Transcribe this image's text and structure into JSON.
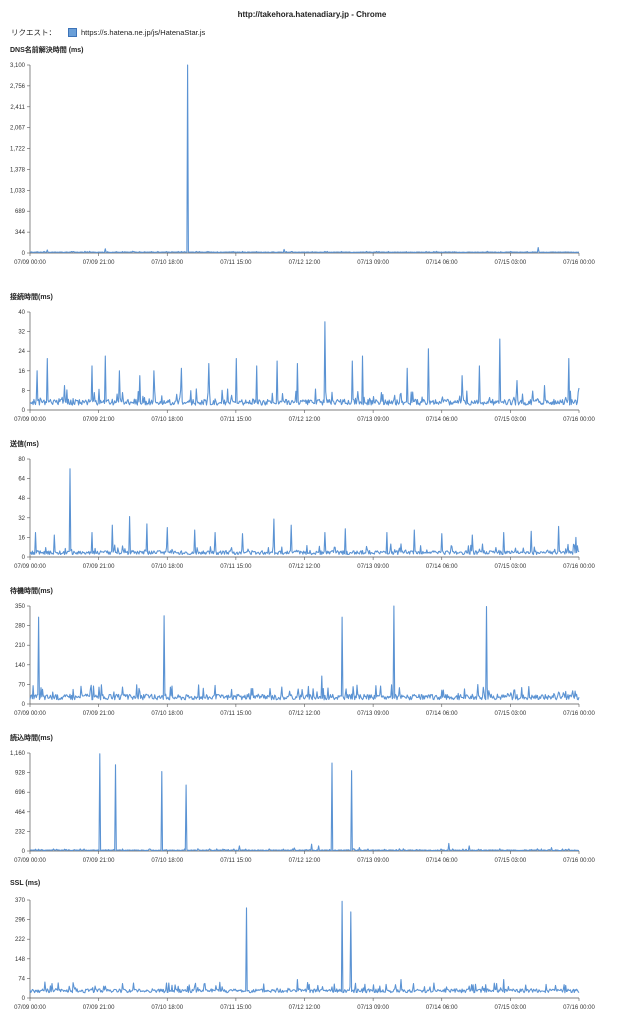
{
  "header": {
    "title": "http://takehora.hatenadiary.jp - Chrome",
    "request_label": "リクエスト：",
    "legend_label": "https://s.hatena.ne.jp/js/HatenaStar.js"
  },
  "colors": {
    "series": "#5b93d3",
    "axis": "#555555",
    "swatch": "#6a9fd8"
  },
  "chart_data": [
    {
      "type": "line",
      "title": "DNS名前解決時間 (ms)",
      "x_ticks": [
        "07/09 00:00",
        "07/09 21:00",
        "07/10 18:00",
        "07/11 15:00",
        "07/12 12:00",
        "07/13 09:00",
        "07/14 06:00",
        "07/15 03:00",
        "07/16 00:00"
      ],
      "y_ticks": [
        0,
        344,
        689,
        1033,
        1378,
        1722,
        2067,
        2411,
        2756,
        3100
      ],
      "ylim": [
        0,
        3100
      ],
      "baseline": 10,
      "noise": 8,
      "spikes": [
        {
          "t": 2.3,
          "v": 3100
        },
        {
          "t": 0.25,
          "v": 50
        },
        {
          "t": 1.1,
          "v": 70
        },
        {
          "t": 3.7,
          "v": 60
        },
        {
          "t": 7.4,
          "v": 90
        },
        {
          "t": 1.5,
          "v": 30
        }
      ]
    },
    {
      "type": "line",
      "title": "接続時間(ms)",
      "x_ticks": [
        "07/09 00:00",
        "07/09 21:00",
        "07/10 18:00",
        "07/11 15:00",
        "07/12 12:00",
        "07/13 09:00",
        "07/14 06:00",
        "07/15 03:00",
        "07/16 00:00"
      ],
      "y_ticks": [
        0,
        8,
        16,
        24,
        32,
        40
      ],
      "ylim": [
        0,
        40
      ],
      "baseline": 2,
      "noise": 3,
      "spikes": [
        {
          "t": 0.1,
          "v": 16
        },
        {
          "t": 0.25,
          "v": 21
        },
        {
          "t": 0.5,
          "v": 10
        },
        {
          "t": 0.9,
          "v": 18
        },
        {
          "t": 1.1,
          "v": 22
        },
        {
          "t": 1.3,
          "v": 16
        },
        {
          "t": 1.6,
          "v": 14
        },
        {
          "t": 1.8,
          "v": 16
        },
        {
          "t": 2.2,
          "v": 17
        },
        {
          "t": 2.6,
          "v": 19
        },
        {
          "t": 3.0,
          "v": 21
        },
        {
          "t": 3.3,
          "v": 18
        },
        {
          "t": 3.6,
          "v": 20
        },
        {
          "t": 3.9,
          "v": 19
        },
        {
          "t": 4.3,
          "v": 36
        },
        {
          "t": 4.7,
          "v": 20
        },
        {
          "t": 4.85,
          "v": 22
        },
        {
          "t": 5.5,
          "v": 17
        },
        {
          "t": 5.8,
          "v": 25
        },
        {
          "t": 6.3,
          "v": 14
        },
        {
          "t": 6.55,
          "v": 18
        },
        {
          "t": 6.85,
          "v": 29
        },
        {
          "t": 7.1,
          "v": 12
        },
        {
          "t": 7.5,
          "v": 10
        },
        {
          "t": 7.85,
          "v": 21
        },
        {
          "t": 8.0,
          "v": 9
        }
      ]
    },
    {
      "type": "line",
      "title": "送信(ms)",
      "x_ticks": [
        "07/09 00:00",
        "07/09 21:00",
        "07/10 18:00",
        "07/11 15:00",
        "07/12 12:00",
        "07/13 09:00",
        "07/14 06:00",
        "07/15 03:00",
        "07/16 00:00"
      ],
      "y_ticks": [
        0,
        16,
        32,
        48,
        64,
        80
      ],
      "ylim": [
        0,
        80
      ],
      "baseline": 2,
      "noise": 4,
      "spikes": [
        {
          "t": 0.08,
          "v": 20
        },
        {
          "t": 0.35,
          "v": 18
        },
        {
          "t": 0.58,
          "v": 72
        },
        {
          "t": 0.9,
          "v": 20
        },
        {
          "t": 1.2,
          "v": 26
        },
        {
          "t": 1.45,
          "v": 33
        },
        {
          "t": 1.7,
          "v": 27
        },
        {
          "t": 2.0,
          "v": 24
        },
        {
          "t": 2.4,
          "v": 22
        },
        {
          "t": 2.7,
          "v": 20
        },
        {
          "t": 3.1,
          "v": 19
        },
        {
          "t": 3.55,
          "v": 31
        },
        {
          "t": 3.8,
          "v": 26
        },
        {
          "t": 4.3,
          "v": 20
        },
        {
          "t": 4.6,
          "v": 23
        },
        {
          "t": 5.2,
          "v": 20
        },
        {
          "t": 5.6,
          "v": 22
        },
        {
          "t": 6.0,
          "v": 19
        },
        {
          "t": 6.45,
          "v": 18
        },
        {
          "t": 6.9,
          "v": 20
        },
        {
          "t": 7.3,
          "v": 21
        },
        {
          "t": 7.7,
          "v": 25
        },
        {
          "t": 7.95,
          "v": 16
        }
      ]
    },
    {
      "type": "line",
      "title": "待機時間(ms)",
      "x_ticks": [
        "07/09 00:00",
        "07/09 21:00",
        "07/10 18:00",
        "07/11 15:00",
        "07/12 12:00",
        "07/13 09:00",
        "07/14 06:00",
        "07/15 03:00",
        "07/16 00:00"
      ],
      "y_ticks": [
        0,
        70,
        140,
        210,
        280,
        350
      ],
      "ylim": [
        0,
        350
      ],
      "baseline": 15,
      "noise": 25,
      "spikes": [
        {
          "t": 0.13,
          "v": 310
        },
        {
          "t": 1.0,
          "v": 60
        },
        {
          "t": 1.95,
          "v": 315
        },
        {
          "t": 3.25,
          "v": 55
        },
        {
          "t": 3.5,
          "v": 55
        },
        {
          "t": 4.25,
          "v": 100
        },
        {
          "t": 4.55,
          "v": 310
        },
        {
          "t": 5.3,
          "v": 350
        },
        {
          "t": 6.65,
          "v": 348
        },
        {
          "t": 7.0,
          "v": 40
        },
        {
          "t": 7.8,
          "v": 45
        }
      ]
    },
    {
      "type": "line",
      "title": "読込時間(ms)",
      "x_ticks": [
        "07/09 00:00",
        "07/09 21:00",
        "07/10 18:00",
        "07/11 15:00",
        "07/12 12:00",
        "07/13 09:00",
        "07/14 06:00",
        "07/15 03:00",
        "07/16 00:00"
      ],
      "y_ticks": [
        0,
        232,
        464,
        696,
        928,
        1160
      ],
      "ylim": [
        0,
        1160
      ],
      "baseline": 5,
      "noise": 10,
      "spikes": [
        {
          "t": 1.02,
          "v": 1150
        },
        {
          "t": 1.25,
          "v": 1020
        },
        {
          "t": 1.92,
          "v": 940
        },
        {
          "t": 2.27,
          "v": 780
        },
        {
          "t": 3.05,
          "v": 60
        },
        {
          "t": 3.85,
          "v": 35
        },
        {
          "t": 4.1,
          "v": 80
        },
        {
          "t": 4.2,
          "v": 60
        },
        {
          "t": 4.4,
          "v": 1040
        },
        {
          "t": 4.68,
          "v": 950
        },
        {
          "t": 4.8,
          "v": 40
        },
        {
          "t": 6.1,
          "v": 90
        },
        {
          "t": 6.4,
          "v": 60
        },
        {
          "t": 7.6,
          "v": 40
        }
      ]
    },
    {
      "type": "line",
      "title": "SSL (ms)",
      "x_ticks": [
        "07/09 00:00",
        "07/09 21:00",
        "07/10 18:00",
        "07/11 15:00",
        "07/12 12:00",
        "07/13 09:00",
        "07/14 06:00",
        "07/15 03:00",
        "07/16 00:00"
      ],
      "y_ticks": [
        0,
        74,
        148,
        222,
        296,
        370
      ],
      "ylim": [
        0,
        370
      ],
      "baseline": 20,
      "noise": 18,
      "spikes": [
        {
          "t": 0.22,
          "v": 60
        },
        {
          "t": 0.95,
          "v": 45
        },
        {
          "t": 2.4,
          "v": 45
        },
        {
          "t": 3.15,
          "v": 340
        },
        {
          "t": 3.9,
          "v": 70
        },
        {
          "t": 4.55,
          "v": 365
        },
        {
          "t": 4.67,
          "v": 325
        },
        {
          "t": 5.0,
          "v": 50
        },
        {
          "t": 5.4,
          "v": 70
        },
        {
          "t": 6.4,
          "v": 45
        },
        {
          "t": 6.9,
          "v": 70
        },
        {
          "t": 7.3,
          "v": 35
        }
      ]
    }
  ]
}
